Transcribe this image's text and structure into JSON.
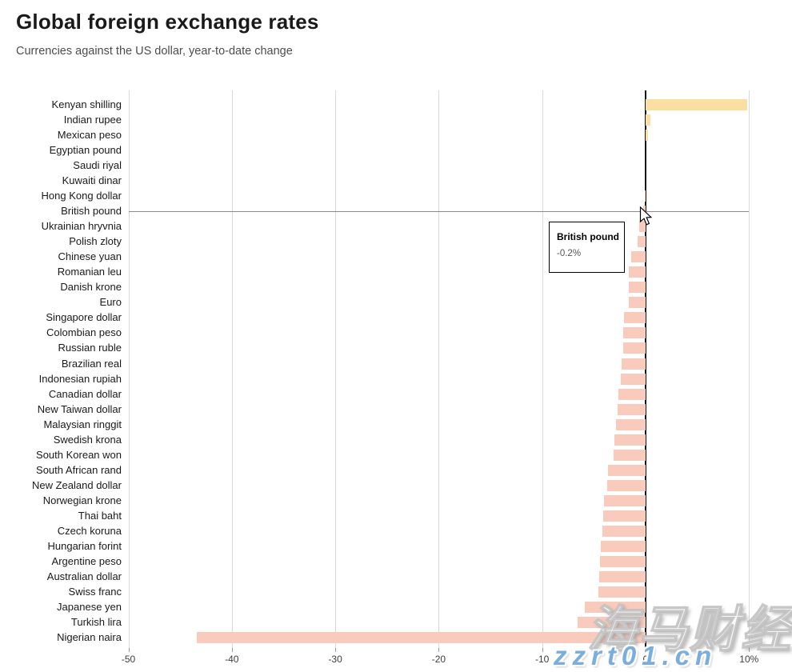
{
  "header": {
    "title": "Global foreign exchange rates",
    "subtitle": "Currencies against the US dollar, year-to-date change"
  },
  "chart_data": {
    "type": "bar",
    "orientation": "horizontal",
    "unit": "%",
    "title": "Global foreign exchange rates",
    "subtitle": "Currencies against the US dollar, year-to-date change",
    "xlim": [
      -50,
      10
    ],
    "x_ticks": [
      -50,
      -40,
      -30,
      -20,
      -10,
      0,
      10
    ],
    "x_tick_labels": [
      "-50",
      "-40",
      "-30",
      "-20",
      "-10",
      "0",
      "10%"
    ],
    "grid": "vertical-light-gray",
    "legend": "none",
    "categories": [
      "Kenyan shilling",
      "Indian rupee",
      "Mexican peso",
      "Egyptian pound",
      "Saudi riyal",
      "Kuwaiti dinar",
      "Hong Kong dollar",
      "British pound",
      "Ukrainian hryvnia",
      "Polish zloty",
      "Chinese yuan",
      "Romanian leu",
      "Danish krone",
      "Euro",
      "Singapore dollar",
      "Colombian peso",
      "Russian ruble",
      "Brazilian real",
      "Indonesian rupiah",
      "Canadian dollar",
      "New Taiwan dollar",
      "Malaysian ringgit",
      "Swedish krona",
      "South Korean won",
      "South African rand",
      "New Zealand dollar",
      "Norwegian krone",
      "Thai baht",
      "Czech koruna",
      "Hungarian forint",
      "Argentine peso",
      "Australian dollar",
      "Swiss franc",
      "Japanese yen",
      "Turkish lira",
      "Nigerian naira"
    ],
    "values": [
      9.8,
      0.5,
      0.2,
      0.0,
      0.0,
      0.0,
      -0.1,
      -0.2,
      -0.6,
      -0.8,
      -1.4,
      -1.6,
      -1.6,
      -1.6,
      -2.1,
      -2.2,
      -2.2,
      -2.3,
      -2.4,
      -2.6,
      -2.7,
      -2.9,
      -3.0,
      -3.1,
      -3.6,
      -3.7,
      -4.0,
      -4.1,
      -4.2,
      -4.3,
      -4.4,
      -4.5,
      -4.6,
      -5.9,
      -6.6,
      -43.4
    ],
    "positive_color": "#fbdfa2",
    "negative_color": "#f9cbbd",
    "zero_line_color": "#141414",
    "gridline_color": "#d9d9d9",
    "highlighted_category": "British pound"
  },
  "tooltip": {
    "title": "British pound",
    "value": "-0.2%"
  },
  "watermarks": {
    "primary": "海马财经",
    "secondary": "zzrt01.cn",
    "secondary_color": "#79aede"
  }
}
